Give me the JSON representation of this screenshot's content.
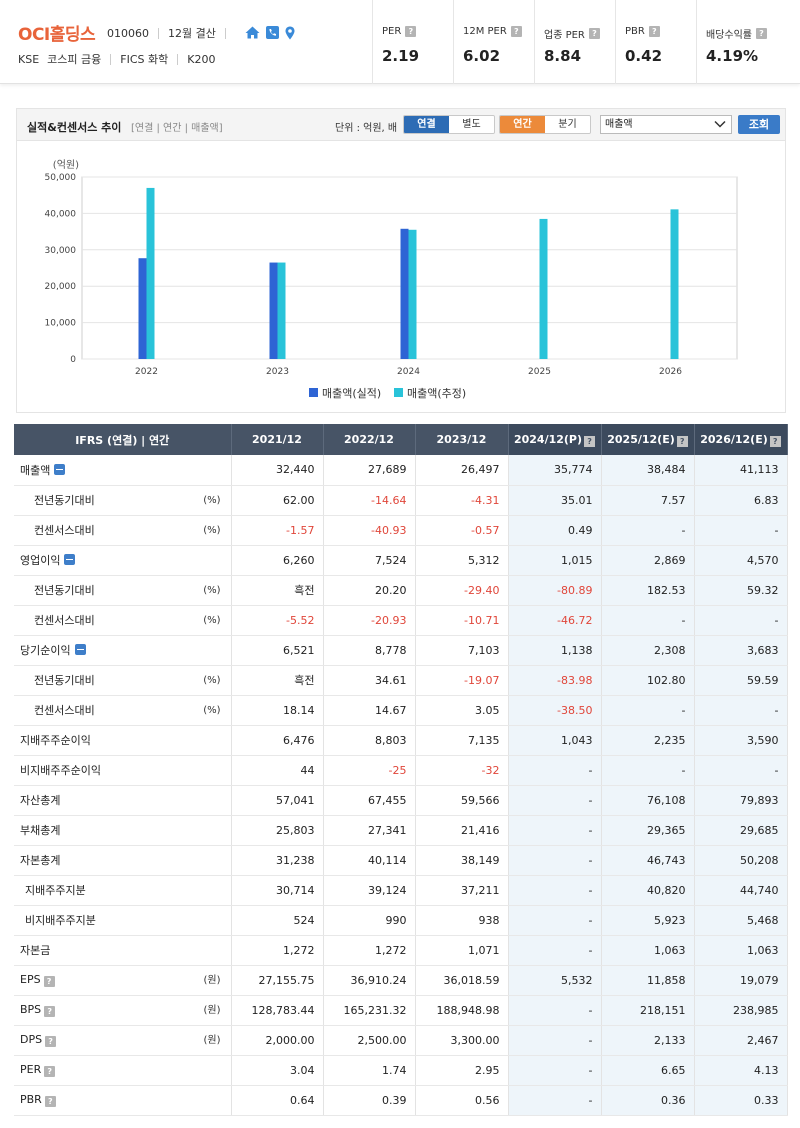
{
  "header": {
    "company": "OCI홀딩스",
    "code": "010060",
    "settlement": "12월 결산",
    "market": "KSE",
    "sector": "코스피 금융",
    "fics": "FICS 화학",
    "index": "K200",
    "icons": [
      "home-icon",
      "phone-icon",
      "location-icon"
    ]
  },
  "kpis": [
    {
      "label": "PER",
      "value": "2.19"
    },
    {
      "label": "12M PER",
      "value": "6.02"
    },
    {
      "label": "업종 PER",
      "value": "8.84"
    },
    {
      "label": "PBR",
      "value": "0.42"
    },
    {
      "label": "배당수익률",
      "value": "4.19%"
    }
  ],
  "panel": {
    "title": "실적&컨센서스 추이",
    "subtitle": "[연결 | 연간 | 매출액]",
    "unit": "단위 : 억원, 배",
    "consolidation": [
      "연결",
      "별도"
    ],
    "period": [
      "연간",
      "분기"
    ],
    "metric": "매출액",
    "search": "조회"
  },
  "chart_data": {
    "type": "bar",
    "ylabel": "(억원)",
    "ylim": [
      0,
      50000
    ],
    "yticks": [
      "0",
      "10,000",
      "20,000",
      "30,000",
      "40,000",
      "50,000"
    ],
    "categories": [
      "2022",
      "2023",
      "2024",
      "2025",
      "2026"
    ],
    "series": [
      {
        "name": "매출액(실적)",
        "color": "#2e64d4",
        "values": [
          27689,
          26497,
          35774,
          null,
          null
        ]
      },
      {
        "name": "매출액(추정)",
        "color": "#29c3d9",
        "values": [
          47000,
          26497,
          35500,
          38484,
          41113
        ]
      }
    ],
    "legend": "bottom"
  },
  "table": {
    "corner": "IFRS (연결) | 연간",
    "columns": [
      {
        "label": "2021/12",
        "q": false,
        "est": false
      },
      {
        "label": "2022/12",
        "q": false,
        "est": false
      },
      {
        "label": "2023/12",
        "q": false,
        "est": false
      },
      {
        "label": "2024/12(P)",
        "q": true,
        "est": true
      },
      {
        "label": "2025/12(E)",
        "q": true,
        "est": true
      },
      {
        "label": "2026/12(E)",
        "q": true,
        "est": true
      }
    ],
    "rows": [
      {
        "label": "매출액",
        "level": 0,
        "toggle": true,
        "unit": "",
        "values": [
          "32,440",
          "27,689",
          "26,497",
          "35,774",
          "38,484",
          "41,113"
        ]
      },
      {
        "label": "전년동기대비",
        "level": 1,
        "unit": "(%)",
        "values": [
          "62.00",
          "-14.64",
          "-4.31",
          "35.01",
          "7.57",
          "6.83"
        ]
      },
      {
        "label": "컨센서스대비",
        "level": 1,
        "unit": "(%)",
        "values": [
          "-1.57",
          "-40.93",
          "-0.57",
          "0.49",
          "-",
          "-"
        ]
      },
      {
        "label": "영업이익",
        "level": 0,
        "toggle": true,
        "unit": "",
        "values": [
          "6,260",
          "7,524",
          "5,312",
          "1,015",
          "2,869",
          "4,570"
        ]
      },
      {
        "label": "전년동기대비",
        "level": 1,
        "unit": "(%)",
        "values": [
          "흑전",
          "20.20",
          "-29.40",
          "-80.89",
          "182.53",
          "59.32"
        ]
      },
      {
        "label": "컨센서스대비",
        "level": 1,
        "unit": "(%)",
        "values": [
          "-5.52",
          "-20.93",
          "-10.71",
          "-46.72",
          "-",
          "-"
        ]
      },
      {
        "label": "당기순이익",
        "level": 0,
        "toggle": true,
        "unit": "",
        "values": [
          "6,521",
          "8,778",
          "7,103",
          "1,138",
          "2,308",
          "3,683"
        ]
      },
      {
        "label": "전년동기대비",
        "level": 1,
        "unit": "(%)",
        "values": [
          "흑전",
          "34.61",
          "-19.07",
          "-83.98",
          "102.80",
          "59.59"
        ]
      },
      {
        "label": "컨센서스대비",
        "level": 1,
        "unit": "(%)",
        "values": [
          "18.14",
          "14.67",
          "3.05",
          "-38.50",
          "-",
          "-"
        ]
      },
      {
        "label": "지배주주순이익",
        "level": 0,
        "unit": "",
        "values": [
          "6,476",
          "8,803",
          "7,135",
          "1,043",
          "2,235",
          "3,590"
        ]
      },
      {
        "label": "비지배주주순이익",
        "level": 0,
        "unit": "",
        "values": [
          "44",
          "-25",
          "-32",
          "-",
          "-",
          "-"
        ]
      },
      {
        "label": "자산총계",
        "level": 0,
        "unit": "",
        "values": [
          "57,041",
          "67,455",
          "59,566",
          "-",
          "76,108",
          "79,893"
        ]
      },
      {
        "label": "부채총계",
        "level": 0,
        "unit": "",
        "values": [
          "25,803",
          "27,341",
          "21,416",
          "-",
          "29,365",
          "29,685"
        ]
      },
      {
        "label": "자본총계",
        "level": 0,
        "unit": "",
        "values": [
          "31,238",
          "40,114",
          "38,149",
          "-",
          "46,743",
          "50,208"
        ]
      },
      {
        "label": "지배주주지분",
        "level": 2,
        "unit": "",
        "values": [
          "30,714",
          "39,124",
          "37,211",
          "-",
          "40,820",
          "44,740"
        ]
      },
      {
        "label": "비지배주주지분",
        "level": 2,
        "unit": "",
        "values": [
          "524",
          "990",
          "938",
          "-",
          "5,923",
          "5,468"
        ]
      },
      {
        "label": "자본금",
        "level": 0,
        "unit": "",
        "values": [
          "1,272",
          "1,272",
          "1,071",
          "-",
          "1,063",
          "1,063"
        ]
      },
      {
        "label": "EPS",
        "level": 0,
        "q": true,
        "unit": "(원)",
        "values": [
          "27,155.75",
          "36,910.24",
          "36,018.59",
          "5,532",
          "11,858",
          "19,079"
        ]
      },
      {
        "label": "BPS",
        "level": 0,
        "q": true,
        "unit": "(원)",
        "values": [
          "128,783.44",
          "165,231.32",
          "188,948.98",
          "-",
          "218,151",
          "238,985"
        ]
      },
      {
        "label": "DPS",
        "level": 0,
        "q": true,
        "unit": "(원)",
        "values": [
          "2,000.00",
          "2,500.00",
          "3,300.00",
          "-",
          "2,133",
          "2,467"
        ]
      },
      {
        "label": "PER",
        "level": 0,
        "q": true,
        "unit": "",
        "values": [
          "3.04",
          "1.74",
          "2.95",
          "-",
          "6.65",
          "4.13"
        ]
      },
      {
        "label": "PBR",
        "level": 0,
        "q": true,
        "unit": "",
        "values": [
          "0.64",
          "0.39",
          "0.56",
          "-",
          "0.36",
          "0.33"
        ]
      }
    ]
  }
}
